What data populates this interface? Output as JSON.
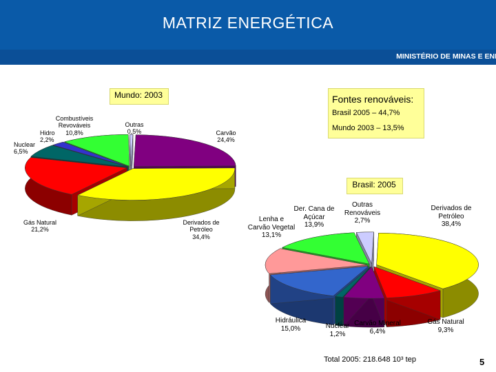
{
  "header": {
    "title": "MATRIZ ENERGÉTICA",
    "ministry": "MINISTÉRIO DE MINAS E ENEI"
  },
  "boxes": {
    "mundo": "Mundo: 2003",
    "fontes_title": "Fontes renováveis:",
    "fontes_brasil": "Brasil 2005 – 44,7%",
    "fontes_mundo": "Mundo 2003 – 13,5%",
    "brasil": "Brasil: 2005"
  },
  "footer": {
    "total": "Total 2005: 218.648 10³ tep",
    "page": "5"
  },
  "colors": {
    "header_bg": "#0a5aa8",
    "box_bg": "#ffff99"
  },
  "chart_data": [
    {
      "type": "pie",
      "title": "Mundo: 2003",
      "slices": [
        {
          "label": "Carvão",
          "value_label": "24,4%",
          "value": 24.4,
          "color": "#800080"
        },
        {
          "label": "Derivados de Petróleo",
          "value_label": "34,4%",
          "value": 34.4,
          "color": "#ffff00"
        },
        {
          "label": "Gás Natural",
          "value_label": "21,2%",
          "value": 21.2,
          "color": "#ff0000"
        },
        {
          "label": "Nuclear",
          "value_label": "6,5%",
          "value": 6.5,
          "color": "#006666"
        },
        {
          "label": "Hidro",
          "value_label": "2,2%",
          "value": 2.2,
          "color": "#3333cc"
        },
        {
          "label": "Combustíveis Renováveis",
          "value_label": "10,8%",
          "value": 10.8,
          "color": "#33ff33"
        },
        {
          "label": "Outras",
          "value_label": "0,5%",
          "value": 0.5,
          "color": "#ccccff"
        }
      ]
    },
    {
      "type": "pie",
      "title": "Brasil: 2005",
      "slices": [
        {
          "label": "Derivados de Petróleo",
          "value_label": "38,4%",
          "value": 38.4,
          "color": "#ffff00"
        },
        {
          "label": "Gás Natural",
          "value_label": "9,3%",
          "value": 9.3,
          "color": "#ff0000"
        },
        {
          "label": "Carvão Mineral",
          "value_label": "6,4%",
          "value": 6.4,
          "color": "#800080"
        },
        {
          "label": "Nuclear",
          "value_label": "1,2%",
          "value": 1.2,
          "color": "#006666"
        },
        {
          "label": "Hidráulica",
          "value_label": "15,0%",
          "value": 15.0,
          "color": "#3366cc"
        },
        {
          "label": "Lenha e Carvão Vegetal",
          "value_label": "13,1%",
          "value": 13.1,
          "color": "#ff9999"
        },
        {
          "label": "Der. Cana de Açúcar",
          "value_label": "13,9%",
          "value": 13.9,
          "color": "#33ff33"
        },
        {
          "label": "Outras Renováveis",
          "value_label": "2,7%",
          "value": 2.7,
          "color": "#ccccff"
        }
      ]
    }
  ]
}
